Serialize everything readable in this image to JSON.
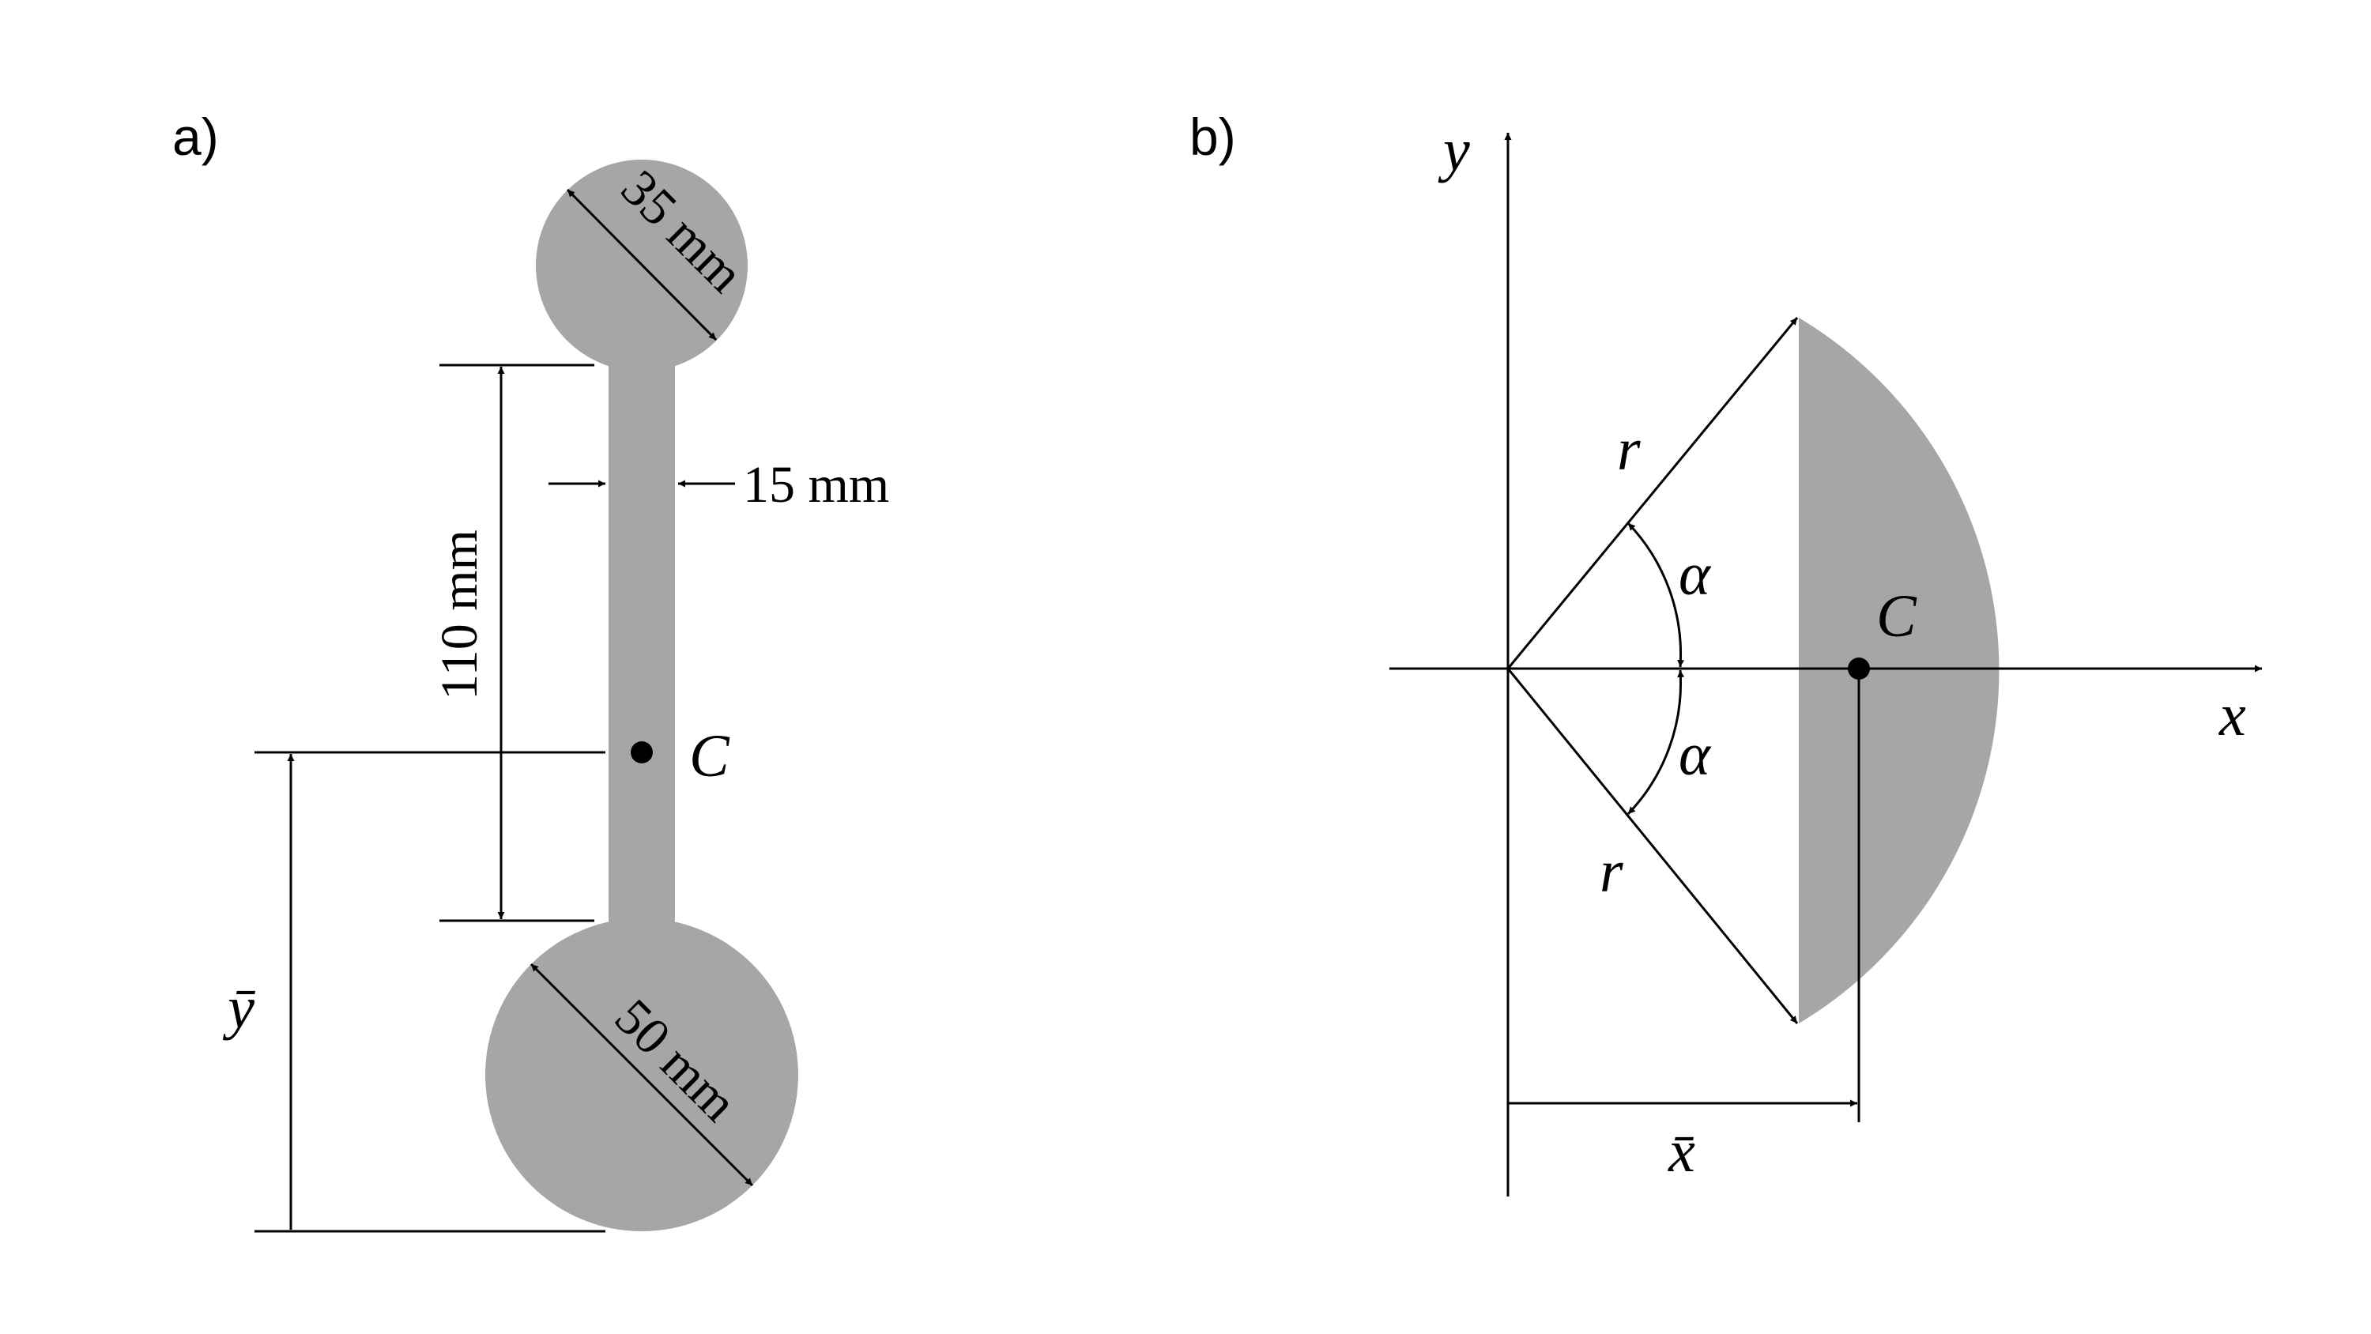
{
  "panel_a": {
    "label": "a)",
    "dims": {
      "top_circle": "35 mm",
      "bar_width": "15 mm",
      "bar_length": "110 mm",
      "bottom_circle": "50 mm"
    },
    "centroid_label": "C",
    "ybar_label": "ȳ"
  },
  "panel_b": {
    "label": "b)",
    "axis_x": "x",
    "axis_y": "y",
    "radius_upper": "r",
    "radius_lower": "r",
    "angle_upper": "α",
    "angle_lower": "α",
    "centroid_label": "C",
    "xbar_label": "x̄"
  }
}
